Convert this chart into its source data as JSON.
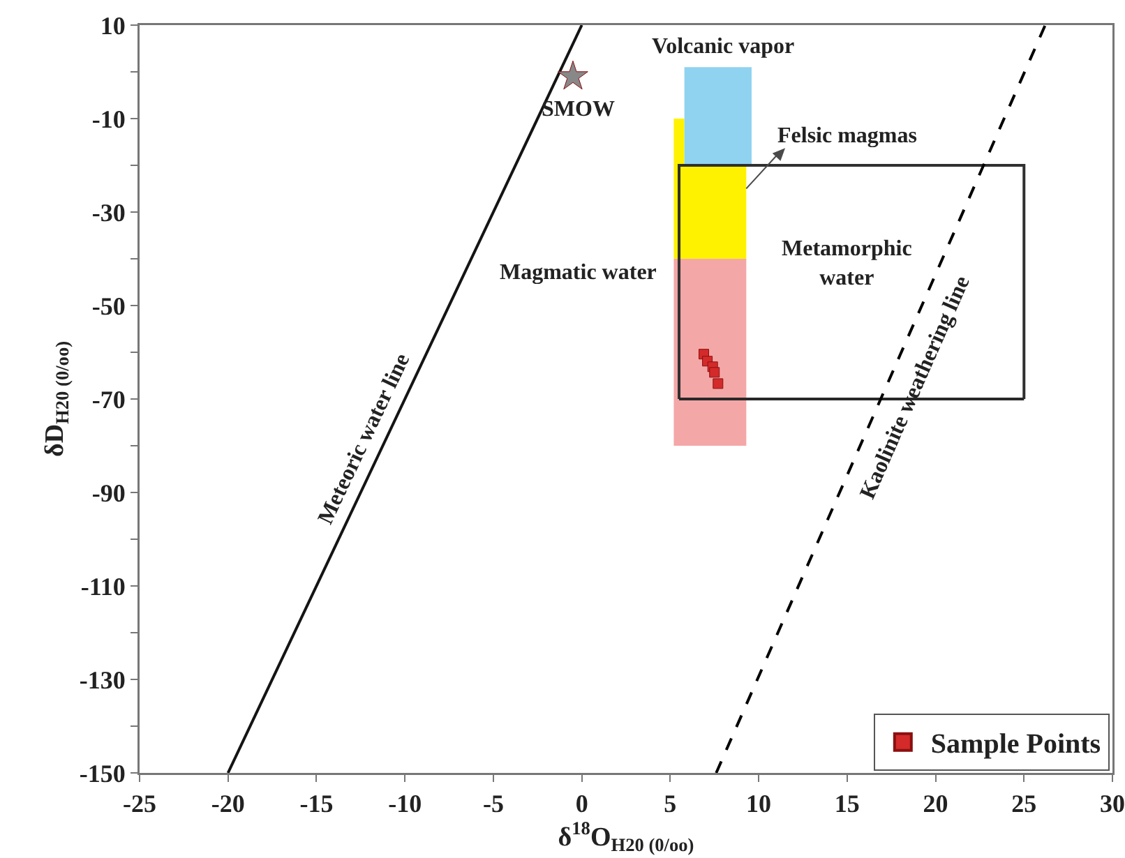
{
  "chart_data": {
    "type": "scatter",
    "xlabel": "δ$^{18}$O$_{H20 (0/oo)}$",
    "ylabel": "δD$_{H20 (0/oo)}$",
    "xlim": [
      -25,
      30
    ],
    "xticks": [
      -25,
      -20,
      -15,
      -10,
      -5,
      0,
      5,
      10,
      15,
      20,
      25,
      30
    ],
    "ylim": [
      -150,
      10
    ],
    "yticks": [
      10,
      {
        "value": 0,
        "label": null
      },
      -10,
      {
        "value": -20,
        "label": null
      },
      -30,
      {
        "value": -40,
        "label": null
      },
      -50,
      {
        "value": -60,
        "label": null
      },
      -70,
      {
        "value": -80,
        "label": null
      },
      -90,
      {
        "value": -100,
        "label": null
      },
      -110,
      {
        "value": -120,
        "label": null
      },
      -130,
      {
        "value": -140,
        "label": null
      },
      -150
    ],
    "legend": "bottom right",
    "series": [
      {
        "type": "area",
        "color": "#fff200",
        "x": [
          5.2,
          5.2,
          5.8,
          5.8,
          9.3,
          9.3,
          5.2
        ],
        "values": [
          -40,
          -10,
          -10,
          -20,
          -20,
          -40,
          -40
        ]
      },
      {
        "type": "area",
        "color": "#8fd3f0",
        "x": [
          5.8,
          5.8,
          9.6,
          9.6,
          5.8
        ],
        "values": [
          -20,
          1,
          1,
          -20,
          -20
        ]
      },
      {
        "type": "area",
        "color": "#f4a7a7",
        "x": [
          5.2,
          5.2,
          9.3,
          9.3,
          5.2
        ],
        "values": [
          -80,
          -40,
          -40,
          -80,
          -80
        ]
      },
      {
        "type": "line",
        "color": "#303030",
        "x": [
          5.5,
          5.5,
          25,
          25
        ],
        "values": [
          -70,
          -20,
          -20,
          -70
        ]
      },
      {
        "type": "line",
        "color": "#282828",
        "x": [
          5.5,
          25
        ],
        "values": [
          -70,
          -70
        ]
      },
      {
        "type": "line",
        "color": "#141414",
        "x": [
          -20,
          0
        ],
        "values": [
          -150,
          10
        ]
      },
      {
        "type": "line",
        "color": "#000000",
        "line_style": "dashed",
        "x": [
          7.6,
          26.2
        ],
        "values": [
          -150,
          10
        ]
      },
      {
        "color": "#888888",
        "marker": "star",
        "x": [
          -0.5
        ],
        "values": [
          -1
        ]
      },
      {
        "name": "Sample Points",
        "color": "#d42a2a",
        "marker": "square",
        "x": [
          6.9,
          7.1,
          7.4,
          7.5,
          7.7
        ],
        "values": [
          -60.4,
          -61.9,
          -63.1,
          -64.3,
          -66.7
        ]
      }
    ],
    "annotations": [
      "Volcanic vapor",
      "Felsic magmas",
      "Metamorphic water",
      "Magmatic water",
      "SMOW",
      "Meteoric water line",
      "Kaolinite weathering line"
    ]
  }
}
